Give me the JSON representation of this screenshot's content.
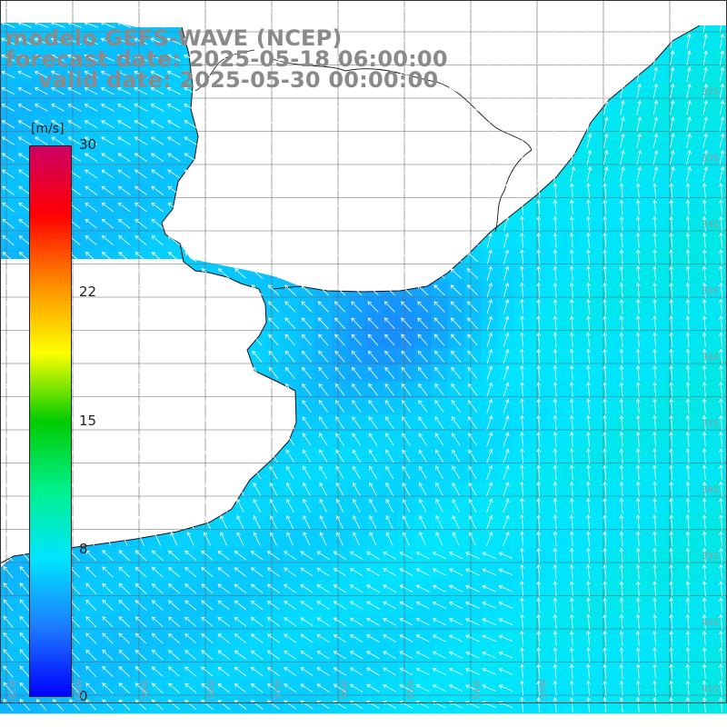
{
  "title": {
    "line1": "modelo GEFS-WAVE (NCEP)",
    "line2": "forecast date: 2025-05-18 06:00:00",
    "line3": "valid date: 2025-05-30 00:00:00"
  },
  "colorbar": {
    "unit": "[m/s]",
    "min": 0,
    "max": 30,
    "ticks": [
      "30",
      "22",
      "15",
      "8",
      "0"
    ],
    "tick_values": [
      30,
      22,
      15,
      8,
      0
    ],
    "colors": [
      "#0000ff",
      "#1c7bff",
      "#00e5ff",
      "#00f08c",
      "#00cc00",
      "#ffff00",
      "#ff8c00",
      "#ff0000",
      "#cc0066"
    ]
  },
  "grid": {
    "lat_labels": [
      "32S",
      "33S",
      "34S",
      "35S",
      "36S",
      "37S",
      "38S",
      "39S",
      "40S",
      "41S"
    ],
    "lat_values": [
      -32,
      -33,
      -34,
      -35,
      -36,
      -37,
      -38,
      -39,
      -40,
      -41
    ],
    "lon_labels": [
      "61W",
      "60W",
      "59W",
      "58W",
      "57W",
      "56W",
      "55W",
      "54W",
      "53W"
    ],
    "lon_values": [
      -61,
      -60,
      -59,
      -58,
      -57,
      -56,
      -55,
      -54,
      -53
    ]
  },
  "field": {
    "variable": "wind speed",
    "typical_speed_ms": 6,
    "arrow_direction": "mostly from the south/south-east"
  }
}
